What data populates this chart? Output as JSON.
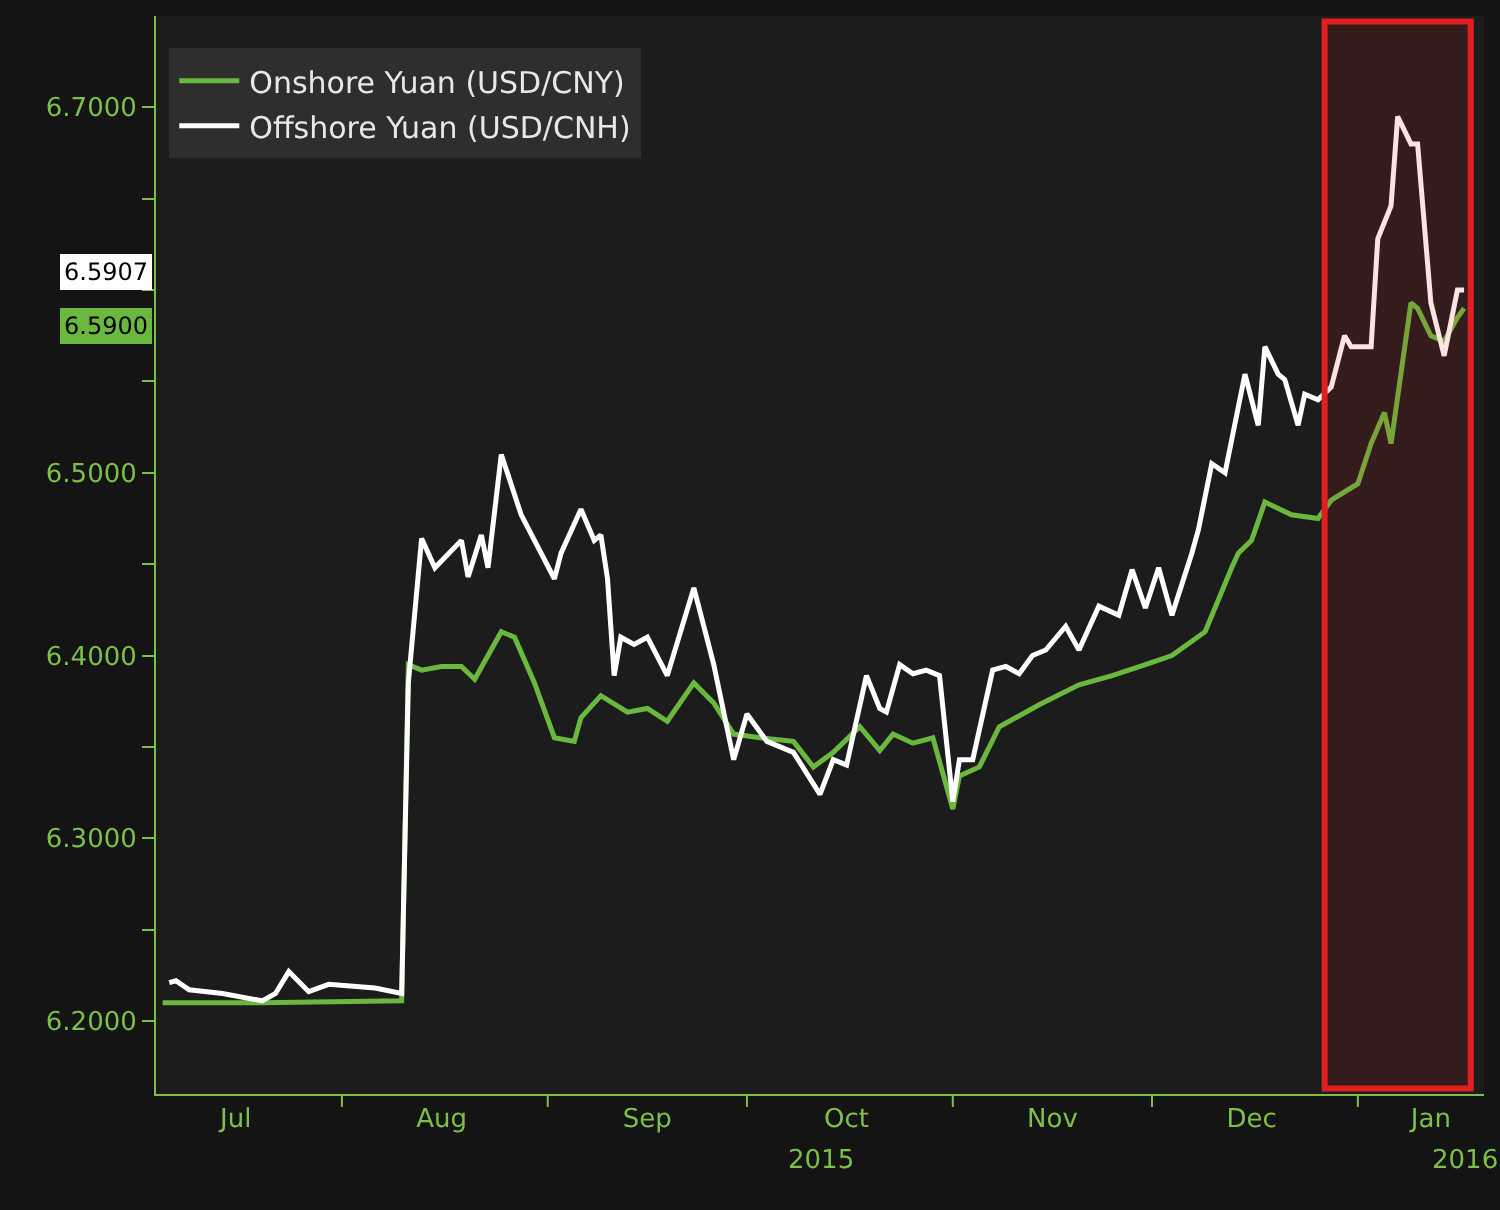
{
  "chart_data": {
    "type": "line",
    "xlim": [
      "2015-07-04",
      "2016-01-20"
    ],
    "xticks": [
      {
        "value": "2015-07-16",
        "label": "Jul"
      },
      {
        "value": "2015-08-01",
        "label": null
      },
      {
        "value": "2015-08-16",
        "label": "Aug"
      },
      {
        "value": "2015-09-01",
        "label": null
      },
      {
        "value": "2015-09-16",
        "label": "Sep"
      },
      {
        "value": "2015-10-01",
        "label": null
      },
      {
        "value": "2015-10-16",
        "label": "Oct"
      },
      {
        "value": "2015-11-01",
        "label": null
      },
      {
        "value": "2015-11-16",
        "label": "Nov"
      },
      {
        "value": "2015-12-01",
        "label": null
      },
      {
        "value": "2015-12-16",
        "label": "Dec"
      },
      {
        "value": "2016-01-01",
        "label": null
      },
      {
        "value": "2016-01-12",
        "label": "Jan"
      }
    ],
    "ylim": [
      6.16,
      6.75
    ],
    "yticks": [
      {
        "value": 6.2,
        "label": "6.2000"
      },
      {
        "value": 6.25,
        "label": null
      },
      {
        "value": 6.3,
        "label": "6.3000"
      },
      {
        "value": 6.35,
        "label": null
      },
      {
        "value": 6.4,
        "label": "6.4000"
      },
      {
        "value": 6.45,
        "label": null
      },
      {
        "value": 6.5,
        "label": "6.5000"
      },
      {
        "value": 6.55,
        "label": null
      },
      {
        "value": 6.6,
        "label": null
      },
      {
        "value": 6.65,
        "label": null
      },
      {
        "value": 6.7,
        "label": "6.7000"
      }
    ],
    "series": [
      {
        "name": "Onshore Yuan (USD/CNY)",
        "color": "#6ab83e",
        "x": [
          "2015-07-05",
          "2015-07-20",
          "2015-08-10",
          "2015-08-11",
          "2015-08-13",
          "2015-08-16",
          "2015-08-19",
          "2015-08-21",
          "2015-08-25",
          "2015-08-27",
          "2015-08-30",
          "2015-09-02",
          "2015-09-05",
          "2015-09-06",
          "2015-09-09",
          "2015-09-13",
          "2015-09-16",
          "2015-09-19",
          "2015-09-23",
          "2015-09-26",
          "2015-09-29",
          "2015-10-03",
          "2015-10-08",
          "2015-10-11",
          "2015-10-14",
          "2015-10-18",
          "2015-10-21",
          "2015-10-23",
          "2015-10-26",
          "2015-10-29",
          "2015-11-01",
          "2015-11-02",
          "2015-11-05",
          "2015-11-08",
          "2015-11-14",
          "2015-11-20",
          "2015-11-25",
          "2015-11-30",
          "2015-12-04",
          "2015-12-09",
          "2015-12-13",
          "2015-12-14",
          "2015-12-16",
          "2015-12-18",
          "2015-12-22",
          "2015-12-26",
          "2015-12-28",
          "2016-01-01",
          "2016-01-03",
          "2016-01-05",
          "2016-01-06",
          "2016-01-09",
          "2016-01-10",
          "2016-01-12",
          "2016-01-14",
          "2016-01-16",
          "2016-01-17"
        ],
        "values": [
          6.21,
          6.21,
          6.211,
          6.395,
          6.392,
          6.394,
          6.394,
          6.387,
          6.413,
          6.41,
          6.385,
          6.355,
          6.353,
          6.366,
          6.378,
          6.369,
          6.371,
          6.364,
          6.385,
          6.374,
          6.357,
          6.355,
          6.353,
          6.339,
          6.347,
          6.361,
          6.348,
          6.357,
          6.352,
          6.355,
          6.316,
          6.334,
          6.339,
          6.361,
          6.373,
          6.384,
          6.389,
          6.395,
          6.4,
          6.413,
          6.448,
          6.456,
          6.463,
          6.484,
          6.477,
          6.475,
          6.485,
          6.494,
          6.516,
          6.533,
          6.516,
          6.593,
          6.59,
          6.575,
          6.572,
          6.585,
          6.59
        ]
      },
      {
        "name": "Offshore Yuan (USD/CNH)",
        "color": "#ffffff",
        "x": [
          "2015-07-06",
          "2015-07-07",
          "2015-07-09",
          "2015-07-14",
          "2015-07-20",
          "2015-07-22",
          "2015-07-24",
          "2015-07-27",
          "2015-07-30",
          "2015-08-06",
          "2015-08-10",
          "2015-08-11",
          "2015-08-13",
          "2015-08-15",
          "2015-08-19",
          "2015-08-20",
          "2015-08-22",
          "2015-08-23",
          "2015-08-25",
          "2015-08-28",
          "2015-09-02",
          "2015-09-03",
          "2015-09-06",
          "2015-09-08",
          "2015-09-09",
          "2015-09-10",
          "2015-09-11",
          "2015-09-12",
          "2015-09-14",
          "2015-09-16",
          "2015-09-19",
          "2015-09-23",
          "2015-09-26",
          "2015-09-29",
          "2015-10-01",
          "2015-10-04",
          "2015-10-08",
          "2015-10-12",
          "2015-10-14",
          "2015-10-16",
          "2015-10-19",
          "2015-10-21",
          "2015-10-22",
          "2015-10-24",
          "2015-10-26",
          "2015-10-28",
          "2015-10-30",
          "2015-11-01",
          "2015-11-02",
          "2015-11-04",
          "2015-11-07",
          "2015-11-09",
          "2015-11-11",
          "2015-11-13",
          "2015-11-15",
          "2015-11-18",
          "2015-11-20",
          "2015-11-23",
          "2015-11-26",
          "2015-11-28",
          "2015-11-30",
          "2015-12-02",
          "2015-12-04",
          "2015-12-07",
          "2015-12-08",
          "2015-12-10",
          "2015-12-12",
          "2015-12-15",
          "2015-12-17",
          "2015-12-18",
          "2015-12-20",
          "2015-12-21",
          "2015-12-23",
          "2015-12-24",
          "2015-12-26",
          "2015-12-28",
          "2015-12-30",
          "2015-12-31",
          "2016-01-03",
          "2016-01-04",
          "2016-01-06",
          "2016-01-07",
          "2016-01-09",
          "2016-01-10",
          "2016-01-12",
          "2016-01-14",
          "2016-01-16",
          "2016-01-17"
        ],
        "values": [
          6.221,
          6.222,
          6.217,
          6.215,
          6.211,
          6.215,
          6.227,
          6.216,
          6.22,
          6.218,
          6.215,
          6.385,
          6.464,
          6.448,
          6.463,
          6.443,
          6.466,
          6.448,
          6.51,
          6.477,
          6.442,
          6.456,
          6.48,
          6.463,
          6.466,
          6.442,
          6.389,
          6.41,
          6.406,
          6.41,
          6.389,
          6.437,
          6.395,
          6.343,
          6.368,
          6.353,
          6.347,
          6.324,
          6.343,
          6.34,
          6.389,
          6.371,
          6.369,
          6.395,
          6.39,
          6.392,
          6.389,
          6.32,
          6.343,
          6.343,
          6.392,
          6.394,
          6.39,
          6.4,
          6.403,
          6.416,
          6.403,
          6.427,
          6.422,
          6.447,
          6.426,
          6.448,
          6.422,
          6.456,
          6.469,
          6.505,
          6.5,
          6.554,
          6.526,
          6.569,
          6.554,
          6.551,
          6.526,
          6.543,
          6.54,
          6.547,
          6.575,
          6.569,
          6.569,
          6.628,
          6.646,
          6.695,
          6.68,
          6.68,
          6.593,
          6.564,
          6.6,
          6.6
        ]
      }
    ],
    "bands": [
      {
        "axis": "x",
        "from": "2015-12-27",
        "to": "2016-01-18",
        "color": "#e02020"
      }
    ],
    "annotations": [
      "6.5900",
      "6.5907",
      "2015",
      "2016"
    ],
    "legend": "top left",
    "grid": false,
    "marker": "none",
    "line_style": "solid"
  }
}
